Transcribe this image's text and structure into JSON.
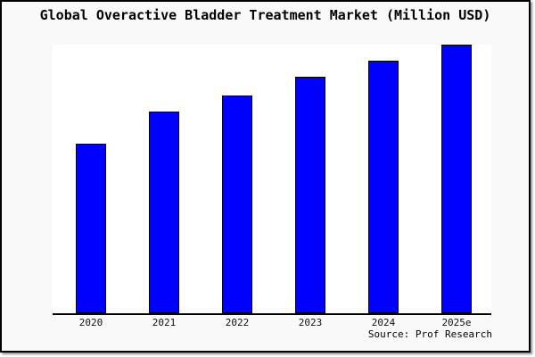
{
  "chart_data": {
    "type": "bar",
    "title": "Global Overactive Bladder Treatment Market (Million USD)",
    "categories": [
      "2020",
      "2021",
      "2022",
      "2023",
      "2024",
      "2025e"
    ],
    "values": [
      63,
      75,
      81,
      88,
      94,
      100
    ],
    "value_scale": "relative heights; chart shows no y-axis labels, tallest bar (2025e) = 100",
    "xlabel": "",
    "ylabel": "",
    "ylim": [
      0,
      100
    ],
    "gridlines": false,
    "legend": false,
    "y_axis_visible": false,
    "colors": {
      "bar_fill": "#0000ff",
      "bar_border": "#000000",
      "plot_background": "#ffffff",
      "figure_background": "#f9f9f9",
      "frame_border": "#000000",
      "text": "#000000"
    }
  },
  "footer": {
    "source": "Source: Prof Research"
  }
}
